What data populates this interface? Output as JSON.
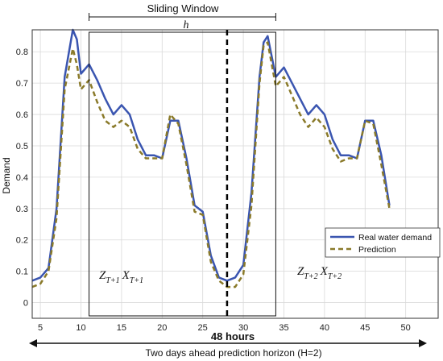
{
  "chart_data": {
    "type": "line",
    "xlabel": "",
    "ylabel": "Demand",
    "xlim": [
      4,
      54
    ],
    "ylim": [
      -0.05,
      0.87
    ],
    "xticks": [
      5,
      10,
      15,
      20,
      25,
      30,
      35,
      40,
      45,
      50
    ],
    "yticks": [
      0,
      0.1,
      0.2,
      0.3,
      0.4,
      0.5,
      0.6,
      0.7,
      0.8
    ],
    "grid": true,
    "legend_position": "right",
    "series": [
      {
        "name": "Real water demand",
        "color": "#3a55b0",
        "style": "solid",
        "x": [
          4,
          5,
          6,
          7,
          8,
          9,
          9.5,
          10,
          11,
          12,
          13,
          14,
          15,
          16,
          17,
          18,
          19,
          20,
          21,
          22,
          23,
          24,
          25,
          26,
          27,
          28,
          29,
          30,
          31,
          32,
          32.5,
          33,
          34,
          35,
          36,
          37,
          38,
          39,
          40,
          41,
          42,
          43,
          44,
          45,
          46,
          47,
          48
        ],
        "y": [
          0.07,
          0.08,
          0.11,
          0.3,
          0.72,
          0.87,
          0.84,
          0.73,
          0.76,
          0.71,
          0.65,
          0.6,
          0.63,
          0.6,
          0.52,
          0.47,
          0.47,
          0.46,
          0.58,
          0.58,
          0.46,
          0.31,
          0.29,
          0.15,
          0.08,
          0.07,
          0.08,
          0.12,
          0.35,
          0.72,
          0.83,
          0.85,
          0.72,
          0.75,
          0.7,
          0.65,
          0.6,
          0.63,
          0.6,
          0.52,
          0.47,
          0.47,
          0.46,
          0.58,
          0.58,
          0.47,
          0.31
        ]
      },
      {
        "name": "Prediction",
        "color": "#8a7a2a",
        "style": "dashed",
        "x": [
          4,
          5,
          6,
          7,
          8,
          9,
          9.5,
          10,
          11,
          12,
          13,
          14,
          15,
          16,
          17,
          18,
          19,
          20,
          21,
          22,
          23,
          24,
          25,
          26,
          27,
          28,
          29,
          30,
          31,
          32,
          32.5,
          33,
          34,
          35,
          36,
          37,
          38,
          39,
          40,
          41,
          42,
          43,
          44,
          45,
          46,
          47,
          48
        ],
        "y": [
          0.05,
          0.06,
          0.1,
          0.27,
          0.68,
          0.81,
          0.76,
          0.68,
          0.71,
          0.64,
          0.58,
          0.56,
          0.58,
          0.56,
          0.49,
          0.46,
          0.46,
          0.46,
          0.6,
          0.57,
          0.44,
          0.29,
          0.28,
          0.13,
          0.07,
          0.05,
          0.05,
          0.09,
          0.31,
          0.7,
          0.82,
          0.83,
          0.69,
          0.72,
          0.66,
          0.6,
          0.56,
          0.59,
          0.56,
          0.49,
          0.45,
          0.46,
          0.46,
          0.58,
          0.57,
          0.44,
          0.3
        ]
      }
    ],
    "annotations": {
      "window_label": "Sliding Window",
      "window_symbol": "h",
      "window_x_range": [
        11,
        34
      ],
      "divider_x": 28,
      "left_block_label": "Z",
      "left_block_sub": "T+1",
      "left_block_label2": "X",
      "left_block_sub2": "T+1",
      "right_block_label": "Z",
      "right_block_sub": "T+2",
      "right_block_label2": "X",
      "right_block_sub2": "T+2",
      "hours_label": "48 hours",
      "horizon_label": "Two days ahead prediction horizon (H=2)"
    }
  }
}
